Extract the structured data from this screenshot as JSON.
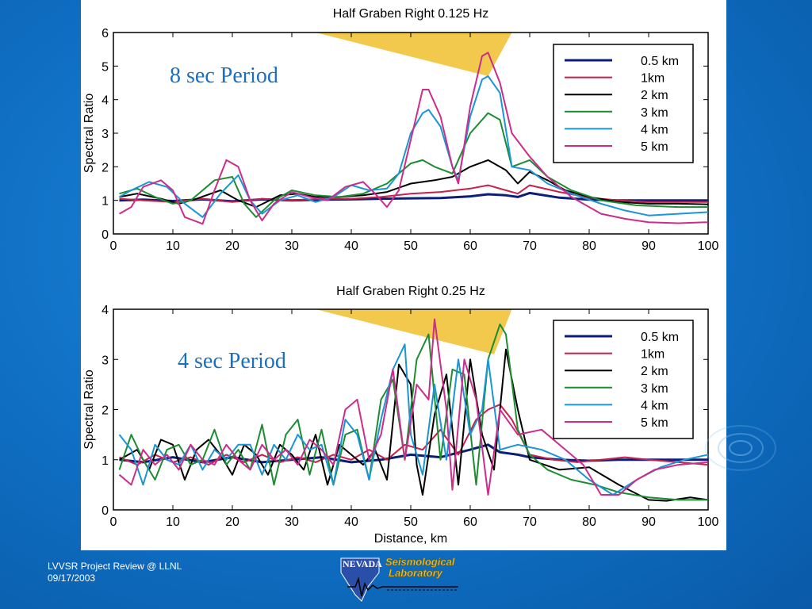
{
  "footer": {
    "line1": "LVVSR Project Review @ LLNL",
    "line2": "09/17/2003"
  },
  "logo": {
    "word1": "NEVADA",
    "word2": "Seismological",
    "word3": "Laboratory"
  },
  "colors": {
    "background": "#0f6ec2",
    "panel": "#ffffff",
    "wedge": "#f2c94c",
    "annotation": "#1a6fc0"
  },
  "chart_data": [
    {
      "type": "line",
      "title": "Half Graben Right 0.125 Hz",
      "xlabel": "",
      "ylabel": "Spectral Ratio",
      "xlim": [
        0,
        100
      ],
      "ylim": [
        0,
        6
      ],
      "xticks": [
        0,
        10,
        20,
        30,
        40,
        50,
        60,
        70,
        80,
        90,
        100
      ],
      "yticks": [
        0,
        1,
        2,
        3,
        4,
        5,
        6
      ],
      "annotation": "8 sec Period",
      "legend_position": "top-right",
      "wedge": [
        [
          34,
          6
        ],
        [
          67,
          6
        ],
        [
          63,
          4.7
        ]
      ],
      "series": [
        {
          "name": "0.5 km",
          "color": "#0b1f7a",
          "x": [
            1,
            5,
            10,
            15,
            20,
            25,
            30,
            35,
            40,
            45,
            50,
            55,
            60,
            63,
            66,
            68,
            70,
            75,
            80,
            85,
            90,
            95,
            100
          ],
          "y": [
            1.0,
            1.02,
            0.98,
            1.03,
            0.97,
            1.03,
            1.0,
            1.02,
            1.03,
            1.05,
            1.06,
            1.07,
            1.12,
            1.18,
            1.15,
            1.1,
            1.22,
            1.08,
            1.02,
            1.0,
            1.0,
            1.0,
            1.0
          ]
        },
        {
          "name": "1km",
          "color": "#c8204a",
          "x": [
            1,
            5,
            10,
            15,
            20,
            25,
            30,
            35,
            40,
            45,
            50,
            55,
            60,
            63,
            66,
            68,
            70,
            75,
            80,
            85,
            90,
            95,
            100
          ],
          "y": [
            1.05,
            1.0,
            0.95,
            1.05,
            0.95,
            1.05,
            1.0,
            1.05,
            1.05,
            1.1,
            1.2,
            1.25,
            1.35,
            1.45,
            1.3,
            1.2,
            1.45,
            1.25,
            1.08,
            1.0,
            0.95,
            0.95,
            0.95
          ]
        },
        {
          "name": "2 km",
          "color": "#000000",
          "x": [
            1,
            4,
            8,
            11,
            14,
            18,
            21,
            24,
            28,
            31,
            34,
            38,
            42,
            46,
            50,
            54,
            57,
            60,
            63,
            66,
            68,
            70,
            73,
            76,
            80,
            85,
            90,
            95,
            100
          ],
          "y": [
            1.1,
            1.2,
            1.05,
            0.9,
            1.05,
            1.3,
            1.0,
            0.8,
            1.15,
            1.2,
            1.1,
            1.1,
            1.15,
            1.25,
            1.5,
            1.6,
            1.7,
            2.0,
            2.2,
            1.9,
            1.5,
            1.85,
            1.6,
            1.3,
            1.1,
            0.95,
            0.9,
            0.9,
            0.88
          ]
        },
        {
          "name": "3 km",
          "color": "#1e8c32",
          "x": [
            1,
            4,
            7,
            10,
            13,
            17,
            20,
            22,
            24,
            27,
            30,
            34,
            38,
            42,
            46,
            50,
            52,
            54,
            57,
            60,
            63,
            65,
            67,
            70,
            73,
            77,
            82,
            88,
            95,
            100
          ],
          "y": [
            1.2,
            1.35,
            1.1,
            0.9,
            1.0,
            1.6,
            1.7,
            0.9,
            0.5,
            1.0,
            1.3,
            1.15,
            1.1,
            1.2,
            1.5,
            2.1,
            2.2,
            2.0,
            1.8,
            3.0,
            3.6,
            3.4,
            2.0,
            2.2,
            1.7,
            1.3,
            1.0,
            0.85,
            0.8,
            0.8
          ]
        },
        {
          "name": "4 km",
          "color": "#1a96d4",
          "x": [
            1,
            3,
            6,
            9,
            12,
            15,
            18,
            21,
            23,
            25,
            28,
            31,
            34,
            37,
            40,
            43,
            46,
            48,
            50,
            52,
            53,
            55,
            57,
            58,
            60,
            62,
            63,
            65,
            67,
            70,
            73,
            77,
            82,
            86,
            90,
            95,
            100
          ],
          "y": [
            1.1,
            1.3,
            1.55,
            1.4,
            0.9,
            0.5,
            1.2,
            1.75,
            1.0,
            0.6,
            1.0,
            1.15,
            0.95,
            1.1,
            1.45,
            1.3,
            1.35,
            1.8,
            3.0,
            3.6,
            3.7,
            3.2,
            2.0,
            1.6,
            3.5,
            4.6,
            4.7,
            4.2,
            2.0,
            1.9,
            1.5,
            1.2,
            0.9,
            0.7,
            0.55,
            0.6,
            0.65
          ]
        },
        {
          "name": "5 km",
          "color": "#cc2c8c",
          "x": [
            1,
            3,
            5,
            8,
            10,
            12,
            15,
            17,
            19,
            21,
            23,
            25,
            27,
            30,
            33,
            36,
            39,
            42,
            44,
            46,
            48,
            50,
            52,
            53,
            55,
            57,
            58,
            60,
            62,
            63,
            65,
            67,
            70,
            73,
            77,
            82,
            86,
            90,
            95,
            100
          ],
          "y": [
            0.6,
            0.8,
            1.4,
            1.6,
            1.3,
            0.5,
            0.3,
            1.3,
            2.2,
            2.0,
            1.0,
            0.4,
            0.9,
            1.25,
            1.1,
            1.0,
            1.4,
            1.55,
            1.2,
            0.8,
            1.3,
            2.8,
            4.3,
            4.3,
            3.5,
            2.0,
            1.5,
            3.8,
            5.3,
            5.4,
            4.5,
            3.0,
            2.3,
            1.7,
            1.1,
            0.6,
            0.45,
            0.35,
            0.32,
            0.35
          ]
        }
      ]
    },
    {
      "type": "line",
      "title": "Half Graben Right 0.25 Hz",
      "xlabel": "Distance, km",
      "ylabel": "Spectral Ratio",
      "xlim": [
        0,
        100
      ],
      "ylim": [
        0,
        4
      ],
      "xticks": [
        0,
        10,
        20,
        30,
        40,
        50,
        60,
        70,
        80,
        90,
        100
      ],
      "yticks": [
        0,
        1,
        2,
        3,
        4
      ],
      "annotation": "4 sec Period",
      "legend_position": "top-right",
      "wedge": [
        [
          34,
          4
        ],
        [
          67,
          4
        ],
        [
          64,
          3.1
        ]
      ],
      "series": [
        {
          "name": "0.5 km",
          "color": "#0b1f7a",
          "x": [
            1,
            5,
            10,
            15,
            20,
            25,
            30,
            35,
            40,
            45,
            50,
            55,
            60,
            63,
            65,
            68,
            70,
            75,
            80,
            85,
            90,
            95,
            100
          ],
          "y": [
            1.0,
            0.95,
            1.05,
            0.95,
            1.05,
            0.95,
            1.0,
            1.05,
            0.95,
            1.0,
            1.1,
            1.05,
            1.2,
            1.3,
            1.15,
            1.1,
            1.05,
            1.0,
            0.98,
            1.0,
            1.0,
            1.0,
            1.0
          ]
        },
        {
          "name": "1km",
          "color": "#c8204a",
          "x": [
            1,
            4,
            7,
            10,
            13,
            16,
            19,
            22,
            25,
            28,
            31,
            34,
            37,
            40,
            43,
            46,
            49,
            52,
            55,
            58,
            61,
            63,
            65,
            67,
            70,
            74,
            78,
            82,
            86,
            90,
            95,
            100
          ],
          "y": [
            1.05,
            0.9,
            1.1,
            0.95,
            1.05,
            0.9,
            1.1,
            0.95,
            1.1,
            0.95,
            1.05,
            0.95,
            1.1,
            1.0,
            1.2,
            1.0,
            1.3,
            1.2,
            1.6,
            1.1,
            1.8,
            2.0,
            2.1,
            1.8,
            1.1,
            1.0,
            0.95,
            1.0,
            1.05,
            1.0,
            0.95,
            0.9
          ]
        },
        {
          "name": "2 km",
          "color": "#000000",
          "x": [
            1,
            4,
            6,
            8,
            10,
            12,
            14,
            16,
            18,
            20,
            22,
            24,
            26,
            28,
            30,
            32,
            34,
            36,
            38,
            40,
            42,
            44,
            46,
            48,
            50,
            51,
            52,
            54,
            56,
            58,
            60,
            62,
            64,
            66,
            68,
            70,
            75,
            80,
            85,
            90,
            93,
            97,
            100
          ],
          "y": [
            1.0,
            1.2,
            0.8,
            1.4,
            1.3,
            0.6,
            1.2,
            1.4,
            1.1,
            0.7,
            1.3,
            1.1,
            0.7,
            1.3,
            1.1,
            0.8,
            1.5,
            0.5,
            1.3,
            1.1,
            0.9,
            1.2,
            0.6,
            2.9,
            2.5,
            0.9,
            0.3,
            1.9,
            2.7,
            0.5,
            3.0,
            1.5,
            0.8,
            3.2,
            2.0,
            1.0,
            0.8,
            0.85,
            0.5,
            0.2,
            0.18,
            0.25,
            0.2
          ]
        },
        {
          "name": "3 km",
          "color": "#1e8c32",
          "x": [
            1,
            3,
            5,
            7,
            9,
            11,
            13,
            15,
            17,
            19,
            21,
            23,
            25,
            27,
            29,
            31,
            33,
            35,
            37,
            39,
            41,
            43,
            45,
            47,
            49,
            51,
            53,
            55,
            57,
            59,
            61,
            63,
            65,
            66,
            68,
            70,
            73,
            77,
            81,
            85,
            90,
            95,
            100
          ],
          "y": [
            0.8,
            1.5,
            1.0,
            0.6,
            1.2,
            1.3,
            0.9,
            1.0,
            1.6,
            0.9,
            1.2,
            0.8,
            1.7,
            0.5,
            1.5,
            1.8,
            0.7,
            1.6,
            0.5,
            1.5,
            1.6,
            0.6,
            2.2,
            2.6,
            1.0,
            3.0,
            3.5,
            1.0,
            2.8,
            2.7,
            0.5,
            3.0,
            3.7,
            3.5,
            1.6,
            1.1,
            0.8,
            0.6,
            0.5,
            0.35,
            0.25,
            0.2,
            0.2
          ]
        },
        {
          "name": "4 km",
          "color": "#1a96d4",
          "x": [
            1,
            3,
            5,
            7,
            9,
            11,
            13,
            15,
            17,
            19,
            21,
            23,
            25,
            27,
            29,
            31,
            33,
            35,
            37,
            39,
            41,
            43,
            45,
            47,
            49,
            50,
            52,
            54,
            56,
            58,
            60,
            62,
            63,
            65,
            68,
            72,
            76,
            80,
            84,
            88,
            92,
            96,
            100
          ],
          "y": [
            1.5,
            1.2,
            0.5,
            1.3,
            1.0,
            0.9,
            1.3,
            0.8,
            1.2,
            1.0,
            1.3,
            1.3,
            0.7,
            1.3,
            1.0,
            1.5,
            1.2,
            1.3,
            0.5,
            1.8,
            1.5,
            0.6,
            1.8,
            2.8,
            3.3,
            1.5,
            0.7,
            2.5,
            1.0,
            3.0,
            1.5,
            2.0,
            3.0,
            1.2,
            1.3,
            1.2,
            1.0,
            0.6,
            0.3,
            0.6,
            0.85,
            1.0,
            1.1
          ]
        },
        {
          "name": "5 km",
          "color": "#cc2c8c",
          "x": [
            1,
            3,
            5,
            7,
            9,
            11,
            13,
            15,
            17,
            19,
            21,
            23,
            25,
            27,
            29,
            31,
            33,
            35,
            37,
            39,
            41,
            43,
            45,
            47,
            49,
            51,
            53,
            54,
            56,
            57,
            59,
            61,
            63,
            65,
            68,
            72,
            76,
            79,
            82,
            85,
            88,
            91,
            95,
            100
          ],
          "y": [
            0.7,
            0.5,
            1.2,
            0.9,
            1.1,
            0.8,
            1.3,
            1.0,
            0.9,
            1.3,
            1.0,
            0.8,
            1.3,
            1.0,
            1.2,
            0.9,
            1.4,
            1.2,
            0.9,
            2.0,
            2.2,
            1.0,
            1.5,
            2.8,
            1.0,
            2.5,
            2.2,
            3.8,
            2.0,
            0.4,
            3.0,
            2.2,
            0.3,
            2.0,
            1.5,
            1.6,
            1.2,
            0.9,
            0.3,
            0.3,
            0.6,
            0.8,
            0.9,
            0.95
          ]
        }
      ]
    }
  ]
}
